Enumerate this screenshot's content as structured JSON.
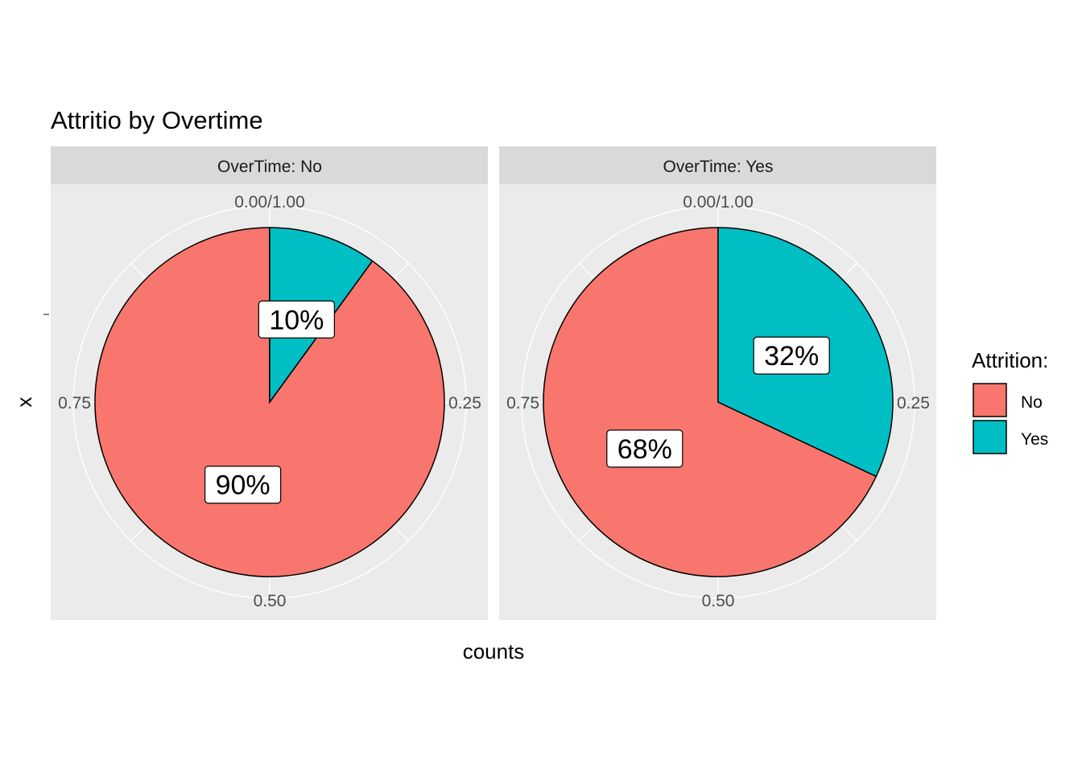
{
  "chart_data": {
    "type": "pie",
    "title": "Attritio by Overtime",
    "xlabel": "counts",
    "ylabel": "x",
    "theta_ticks": [
      {
        "value": 0,
        "label": "0.00/1.00"
      },
      {
        "value": 0.25,
        "label": "0.25"
      },
      {
        "value": 0.5,
        "label": "0.50"
      },
      {
        "value": 0.75,
        "label": "0.75"
      }
    ],
    "legend": {
      "title": "Attrition:",
      "position": "right",
      "entries": [
        {
          "name": "No",
          "color": "#F8766D"
        },
        {
          "name": "Yes",
          "color": "#00BFC4"
        }
      ]
    },
    "panels": [
      {
        "strip": "OverTime: No",
        "slices": [
          {
            "category": "No",
            "value": 0.9,
            "label": "90%",
            "color": "#F8766D"
          },
          {
            "category": "Yes",
            "value": 0.1,
            "label": "10%",
            "color": "#00BFC4"
          }
        ]
      },
      {
        "strip": "OverTime: Yes",
        "slices": [
          {
            "category": "No",
            "value": 0.68,
            "label": "68%",
            "color": "#F8766D"
          },
          {
            "category": "Yes",
            "value": 0.32,
            "label": "32%",
            "color": "#00BFC4"
          }
        ]
      }
    ],
    "grid": true
  },
  "colors": {
    "panel_bg": "#EBEBEB",
    "strip_bg": "#D9D9D9",
    "grid": "#FFFFFF",
    "outline": "#000000"
  }
}
